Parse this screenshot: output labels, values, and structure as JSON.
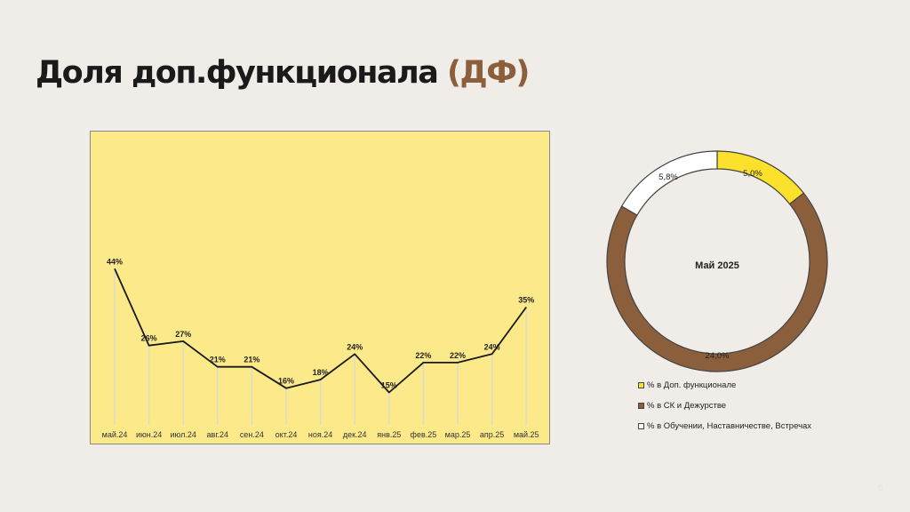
{
  "slide": {
    "title_main": "Доля доп.функционала ",
    "title_accent": "(ДФ)",
    "page_number": "6"
  },
  "chart_data": [
    {
      "type": "line",
      "categories": [
        "май.24",
        "июн.24",
        "июл.24",
        "авг.24",
        "сен.24",
        "окт.24",
        "ноя.24",
        "дек.24",
        "янв.25",
        "фев.25",
        "мар.25",
        "апр.25",
        "май.25"
      ],
      "values": [
        44,
        26,
        27,
        21,
        21,
        16,
        18,
        24,
        15,
        22,
        22,
        24,
        35
      ],
      "data_labels": [
        "44%",
        "26%",
        "27%",
        "21%",
        "21%",
        "16%",
        "18%",
        "24%",
        "15%",
        "22%",
        "22%",
        "24%",
        "35%"
      ],
      "drop_lines": true,
      "grid": false,
      "colors": {
        "background": "#fbe98a",
        "line": "#1a1a1a"
      }
    },
    {
      "type": "pie",
      "donut": true,
      "center_label": "Май 2025",
      "slices": [
        {
          "name": "% в Доп. функционале",
          "value": 5.0,
          "label": "5,0%",
          "color": "#fbe02c"
        },
        {
          "name": "% в СК и Дежурстве",
          "value": 24.0,
          "label": "24,0%",
          "color": "#8b5e3c"
        },
        {
          "name": "% в Обучении, Наставничестве, Встречах",
          "value": 5.8,
          "label": "5,8%",
          "color": "#ffffff"
        }
      ],
      "legend_position": "bottom"
    }
  ]
}
